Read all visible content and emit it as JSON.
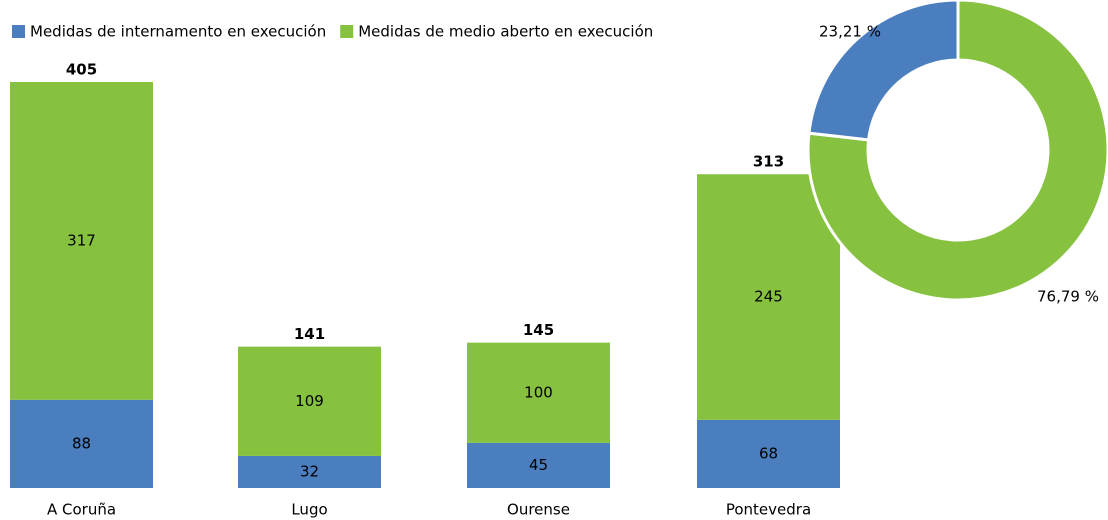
{
  "chart_data": [
    {
      "type": "bar",
      "stacked": true,
      "categories": [
        "A Coruña",
        "Lugo",
        "Ourense",
        "Pontevedra"
      ],
      "series": [
        {
          "name": "Medidas de internamento en execución",
          "color": "#4a7ebf",
          "values": [
            88,
            32,
            45,
            68
          ]
        },
        {
          "name": "Medidas de medio aberto en execución",
          "color": "#86c140",
          "values": [
            317,
            109,
            100,
            245
          ]
        }
      ],
      "totals": [
        405,
        141,
        145,
        313
      ],
      "legend": "top-left"
    },
    {
      "type": "pie",
      "donut": true,
      "values": [
        23.21,
        76.79
      ],
      "value_labels": [
        "23,21 %",
        "76,79 %"
      ],
      "colors": [
        "#4a7ebf",
        "#86c140"
      ]
    }
  ]
}
